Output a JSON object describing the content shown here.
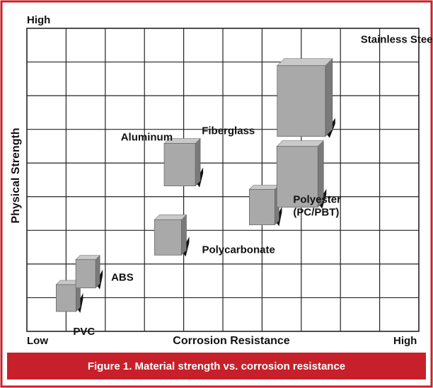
{
  "caption": "Figure 1. Material strength vs. corrosion resistance",
  "colors": {
    "frame": "#c8202a",
    "box_fill": "#a9a9a9",
    "box_top": "#c9c9c9",
    "box_side": "#7a7a7a",
    "grid": "#222222"
  },
  "chart_data": {
    "type": "scatter",
    "marker": "3d-box",
    "title": "",
    "xlabel": "Corrosion Resistance",
    "ylabel": "Physical Strength",
    "x_tick_labels": {
      "low": "Low",
      "high": "High"
    },
    "y_tick_labels": {
      "low": "",
      "high": "High"
    },
    "xlim": [
      0,
      10
    ],
    "ylim": [
      0,
      10
    ],
    "grid": true,
    "points": [
      {
        "label": "PVC",
        "x": 1.0,
        "y": 1.1
      },
      {
        "label": "ABS",
        "x": 1.5,
        "y": 1.9
      },
      {
        "label": "Polycarbonate",
        "x": 3.6,
        "y": 3.1
      },
      {
        "label": "Aluminum",
        "x": 3.9,
        "y": 5.5
      },
      {
        "label": "Polyester (PC/PBT)",
        "x": 6.0,
        "y": 4.1
      },
      {
        "label": "Fiberglass",
        "x": 6.9,
        "y": 5.1
      },
      {
        "label": "Stainless Steel",
        "x": 7.0,
        "y": 7.6
      }
    ]
  }
}
